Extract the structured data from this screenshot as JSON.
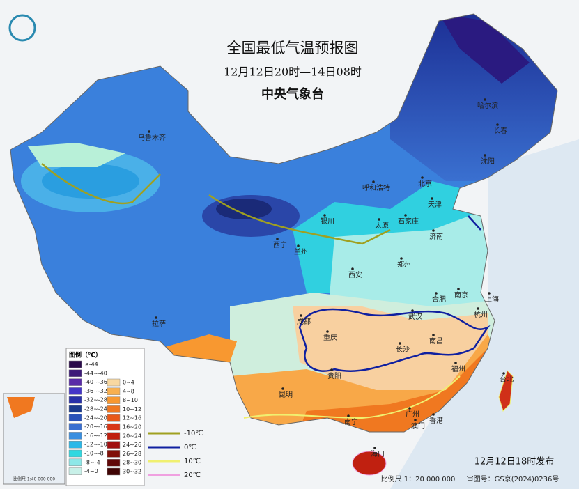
{
  "header": {
    "title": "全国最低气温预报图",
    "subtitle": "12月12日20时—14日08时",
    "agency": "中央气象台"
  },
  "cities": [
    "乌鲁木齐",
    "哈尔滨",
    "长春",
    "沈阳",
    "呼和浩特",
    "北京",
    "天津",
    "银川",
    "太原",
    "石家庄",
    "济南",
    "西宁",
    "兰州",
    "西安",
    "郑州",
    "合肥",
    "南京",
    "上海",
    "杭州",
    "拉萨",
    "成都",
    "重庆",
    "武汉",
    "长沙",
    "南昌",
    "贵阳",
    "福州",
    "台北",
    "昆明",
    "南宁",
    "广州",
    "澳门",
    "香港",
    "海口"
  ],
  "legend": {
    "title": "图例（℃）",
    "cold": [
      {
        "label": "≤-44",
        "color": "#2a0a4a"
      },
      {
        "label": "-44~-40",
        "color": "#3d1a78"
      },
      {
        "label": "-40~-36",
        "color": "#5a2aa8"
      },
      {
        "label": "-36~-32",
        "color": "#4535c8"
      },
      {
        "label": "-32~-28",
        "color": "#2830a8"
      },
      {
        "label": "-28~-24",
        "color": "#1a3a8c"
      },
      {
        "label": "-24~-20",
        "color": "#2a52b8"
      },
      {
        "label": "-20~-16",
        "color": "#3a6fd0"
      },
      {
        "label": "-16~-12",
        "color": "#3a8fe0"
      },
      {
        "label": "-12~-10",
        "color": "#2ab8e8"
      },
      {
        "label": "-10~-8",
        "color": "#30d8e0"
      },
      {
        "label": "-8~-4",
        "color": "#8ee8e8"
      },
      {
        "label": "-4~0",
        "color": "#c8f0e8"
      }
    ],
    "warm": [
      {
        "label": "0~4",
        "color": "#f8d8a0"
      },
      {
        "label": "4~8",
        "color": "#f8b050"
      },
      {
        "label": "8~10",
        "color": "#f89830"
      },
      {
        "label": "10~12",
        "color": "#f07820"
      },
      {
        "label": "12~16",
        "color": "#e85818"
      },
      {
        "label": "16~20",
        "color": "#d83818"
      },
      {
        "label": "20~24",
        "color": "#c02010"
      },
      {
        "label": "24~26",
        "color": "#a01010"
      },
      {
        "label": "26~28",
        "color": "#801008"
      },
      {
        "label": "28~30",
        "color": "#600808"
      },
      {
        "label": "30~32",
        "color": "#400404"
      }
    ],
    "isolines": [
      {
        "label": "-10℃",
        "color": "#a0a020"
      },
      {
        "label": "0℃",
        "color": "#1020a0"
      },
      {
        "label": "10℃",
        "color": "#f0f070"
      },
      {
        "label": "20℃",
        "color": "#f0a0e0"
      }
    ]
  },
  "footer": {
    "issued": "12月12日18时发布",
    "scale": "比例尺 1：20 000 000",
    "approval": "审图号：GS京(2024)0236号",
    "inset_scale": "比例尺 1:40 000 000"
  }
}
